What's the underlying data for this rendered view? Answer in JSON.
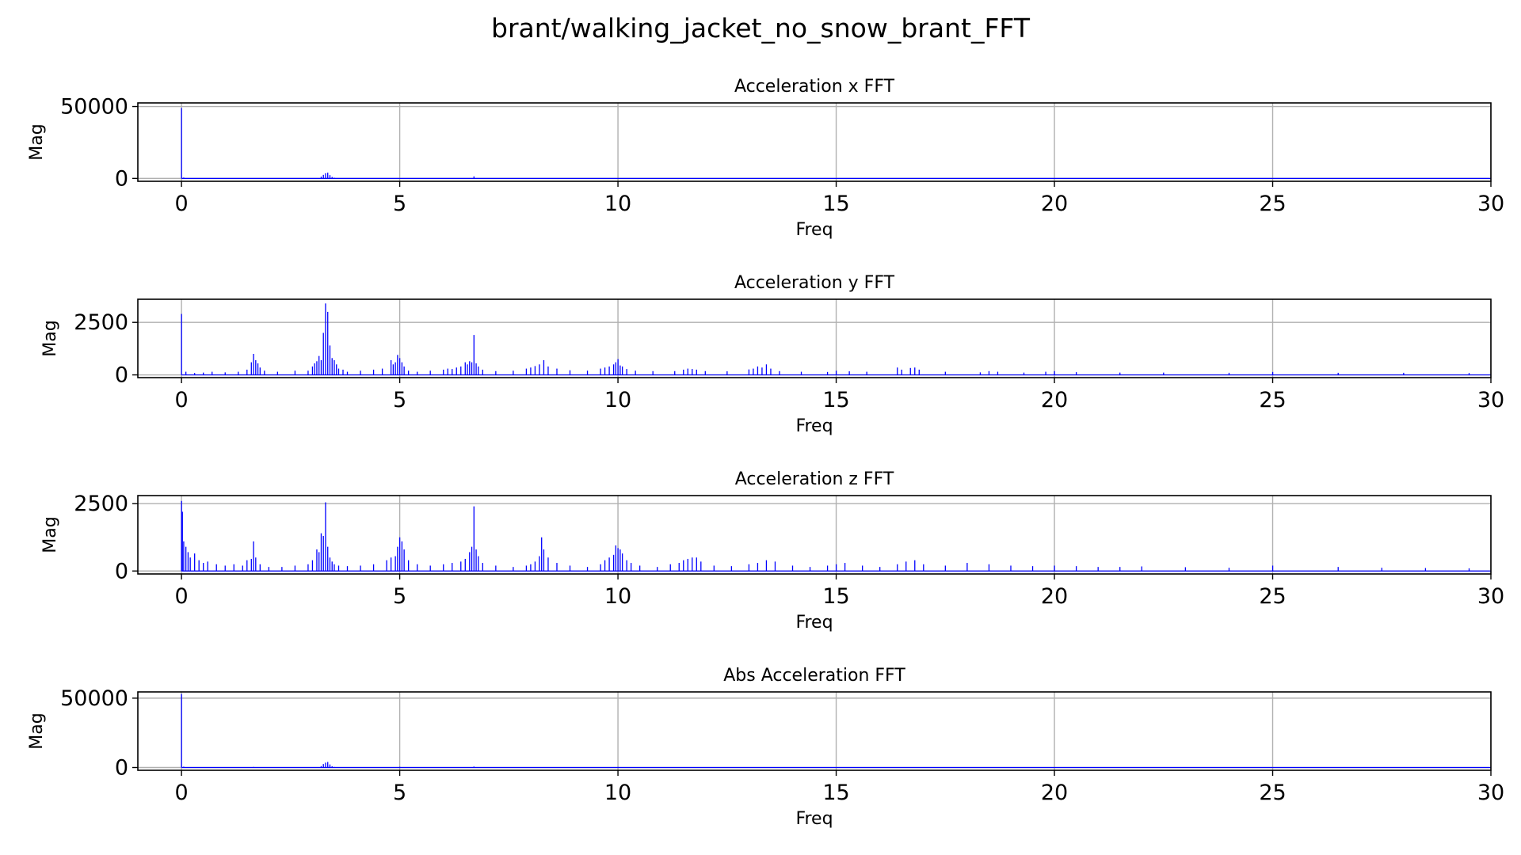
{
  "figure_title": "brant/walking_jacket_no_snow_brant_FFT",
  "colors": {
    "series": "#0000ff",
    "grid": "#b0b0b0",
    "axes": "#000000"
  },
  "chart_data": [
    {
      "type": "bar",
      "title": "Acceleration x FFT",
      "xlabel": "Freq",
      "ylabel": "Mag",
      "xlim": [
        -1,
        30
      ],
      "ylim": [
        -2000,
        52500
      ],
      "xticks": [
        0,
        5,
        10,
        15,
        20,
        25,
        30
      ],
      "yticks": [
        0,
        50000
      ],
      "grid": true,
      "series": [
        {
          "x": [
            0,
            0.05,
            3.2,
            3.25,
            3.3,
            3.35,
            3.4,
            3.45,
            3.5,
            6.7
          ],
          "values": [
            49000,
            600,
            1200,
            2500,
            3600,
            4000,
            2300,
            1000,
            500,
            1400
          ]
        }
      ]
    },
    {
      "type": "bar",
      "title": "Acceleration y FFT",
      "xlabel": "Freq",
      "ylabel": "Mag",
      "xlim": [
        -1,
        30
      ],
      "ylim": [
        -130,
        3600
      ],
      "xticks": [
        0,
        5,
        10,
        15,
        20,
        25,
        30
      ],
      "yticks": [
        0,
        2500
      ],
      "grid": true,
      "series": [
        {
          "x": [
            0,
            0.1,
            0.3,
            0.5,
            0.7,
            1.0,
            1.3,
            1.5,
            1.6,
            1.65,
            1.7,
            1.75,
            1.8,
            1.9,
            2.2,
            2.6,
            2.9,
            3.0,
            3.05,
            3.1,
            3.15,
            3.2,
            3.25,
            3.3,
            3.35,
            3.4,
            3.45,
            3.5,
            3.55,
            3.6,
            3.7,
            3.8,
            4.1,
            4.4,
            4.6,
            4.8,
            4.85,
            4.9,
            4.95,
            5.0,
            5.05,
            5.1,
            5.2,
            5.4,
            5.7,
            6.0,
            6.1,
            6.2,
            6.3,
            6.4,
            6.5,
            6.55,
            6.6,
            6.65,
            6.7,
            6.75,
            6.8,
            6.9,
            7.2,
            7.6,
            7.9,
            8.0,
            8.1,
            8.2,
            8.3,
            8.4,
            8.6,
            8.9,
            9.3,
            9.6,
            9.7,
            9.8,
            9.9,
            9.95,
            10.0,
            10.05,
            10.1,
            10.2,
            10.4,
            10.8,
            11.3,
            11.5,
            11.6,
            11.7,
            11.8,
            12.0,
            12.5,
            13.0,
            13.1,
            13.2,
            13.3,
            13.4,
            13.5,
            13.7,
            14.2,
            14.8,
            15.0,
            15.3,
            15.7,
            16.4,
            16.5,
            16.7,
            16.8,
            16.9,
            17.5,
            18.3,
            18.5,
            18.7,
            19.3,
            19.8,
            20.0,
            20.5,
            21.5,
            22.5,
            24.0,
            25.0,
            26.5,
            28.0,
            29.5
          ],
          "values": [
            2900,
            150,
            90,
            110,
            150,
            120,
            150,
            250,
            600,
            1000,
            700,
            550,
            350,
            200,
            150,
            200,
            200,
            400,
            550,
            650,
            900,
            700,
            2000,
            3400,
            3000,
            1400,
            800,
            700,
            500,
            300,
            250,
            150,
            200,
            250,
            300,
            700,
            500,
            600,
            950,
            800,
            600,
            400,
            200,
            150,
            200,
            250,
            300,
            280,
            350,
            400,
            600,
            500,
            650,
            600,
            1900,
            550,
            400,
            250,
            180,
            200,
            300,
            350,
            420,
            500,
            700,
            400,
            300,
            220,
            200,
            300,
            350,
            400,
            500,
            600,
            750,
            450,
            400,
            280,
            200,
            180,
            180,
            250,
            300,
            280,
            250,
            180,
            170,
            260,
            300,
            400,
            350,
            500,
            300,
            180,
            150,
            140,
            200,
            170,
            150,
            350,
            250,
            330,
            350,
            250,
            150,
            120,
            180,
            150,
            110,
            150,
            180,
            130,
            110,
            110,
            100,
            140,
            100,
            100,
            90
          ]
        }
      ]
    },
    {
      "type": "bar",
      "title": "Acceleration z FFT",
      "xlabel": "Freq",
      "ylabel": "Mag",
      "xlim": [
        -1,
        30
      ],
      "ylim": [
        -110,
        2800
      ],
      "xticks": [
        0,
        5,
        10,
        15,
        20,
        25,
        30
      ],
      "yticks": [
        0,
        2500
      ],
      "grid": true,
      "series": [
        {
          "x": [
            0,
            0.02,
            0.05,
            0.1,
            0.15,
            0.2,
            0.3,
            0.4,
            0.5,
            0.6,
            0.8,
            1.0,
            1.2,
            1.4,
            1.5,
            1.6,
            1.65,
            1.7,
            1.8,
            2.0,
            2.3,
            2.6,
            2.9,
            3.0,
            3.1,
            3.15,
            3.2,
            3.25,
            3.3,
            3.35,
            3.4,
            3.45,
            3.5,
            3.6,
            3.8,
            4.1,
            4.4,
            4.7,
            4.8,
            4.9,
            4.95,
            5.0,
            5.05,
            5.1,
            5.2,
            5.4,
            5.7,
            6.0,
            6.2,
            6.4,
            6.5,
            6.6,
            6.65,
            6.7,
            6.75,
            6.8,
            6.9,
            7.2,
            7.6,
            7.9,
            8.0,
            8.1,
            8.2,
            8.25,
            8.3,
            8.4,
            8.6,
            8.9,
            9.3,
            9.6,
            9.7,
            9.8,
            9.9,
            9.95,
            10.0,
            10.05,
            10.1,
            10.2,
            10.3,
            10.5,
            10.9,
            11.2,
            11.4,
            11.5,
            11.6,
            11.7,
            11.8,
            11.9,
            12.2,
            12.6,
            13.0,
            13.2,
            13.4,
            13.6,
            14.0,
            14.4,
            14.8,
            15.0,
            15.2,
            15.6,
            16.0,
            16.4,
            16.6,
            16.8,
            17.0,
            17.5,
            18.0,
            18.5,
            19.0,
            19.5,
            20.0,
            20.5,
            21.0,
            21.5,
            22.0,
            23.0,
            24.0,
            25.0,
            26.5,
            27.5,
            28.5,
            29.5
          ],
          "values": [
            2600,
            2200,
            1100,
            900,
            700,
            500,
            650,
            400,
            300,
            350,
            250,
            200,
            250,
            200,
            400,
            450,
            1100,
            500,
            250,
            150,
            150,
            200,
            250,
            400,
            800,
            700,
            1400,
            1300,
            2550,
            900,
            500,
            350,
            250,
            200,
            180,
            200,
            250,
            400,
            500,
            550,
            900,
            1250,
            1100,
            800,
            400,
            250,
            200,
            250,
            300,
            350,
            450,
            700,
            900,
            2400,
            800,
            550,
            300,
            200,
            150,
            200,
            250,
            350,
            550,
            1250,
            800,
            500,
            300,
            200,
            150,
            250,
            400,
            500,
            600,
            950,
            850,
            800,
            650,
            400,
            300,
            200,
            150,
            250,
            300,
            400,
            450,
            500,
            500,
            350,
            200,
            180,
            250,
            300,
            400,
            350,
            200,
            150,
            200,
            250,
            300,
            200,
            150,
            250,
            350,
            400,
            250,
            200,
            300,
            250,
            200,
            180,
            200,
            180,
            150,
            150,
            170,
            140,
            120,
            200,
            150,
            120,
            110,
            100
          ]
        }
      ]
    },
    {
      "type": "bar",
      "title": "Abs Acceleration FFT",
      "xlabel": "Freq",
      "ylabel": "Mag",
      "xlim": [
        -1,
        30
      ],
      "ylim": [
        -2000,
        54500
      ],
      "xticks": [
        0,
        5,
        10,
        15,
        20,
        25,
        30
      ],
      "yticks": [
        0,
        50000
      ],
      "grid": true,
      "series": [
        {
          "x": [
            0,
            0.05,
            1.65,
            3.2,
            3.25,
            3.3,
            3.35,
            3.4,
            3.45,
            3.5,
            5.0,
            6.7,
            10.0
          ],
          "values": [
            53000,
            600,
            400,
            1000,
            2500,
            3500,
            4000,
            2200,
            900,
            400,
            500,
            700,
            400
          ]
        }
      ]
    }
  ]
}
